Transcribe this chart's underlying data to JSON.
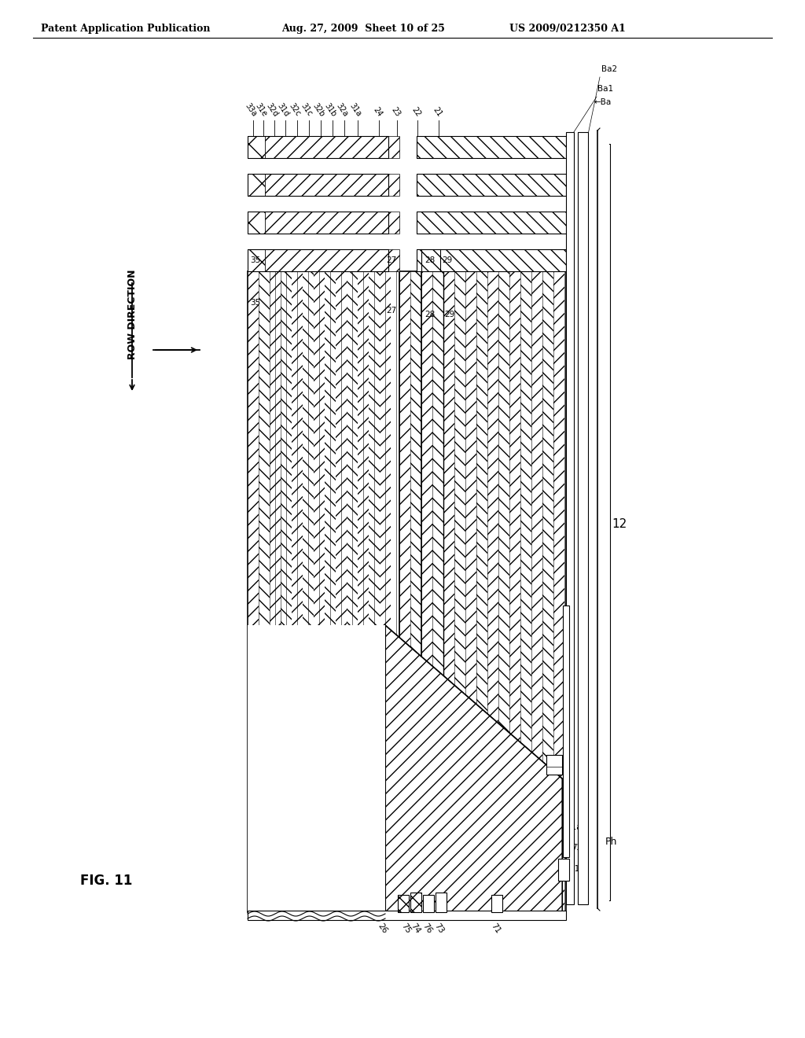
{
  "header_left": "Patent Application Publication",
  "header_center": "Aug. 27, 2009  Sheet 10 of 25",
  "header_right": "US 2009/0212350 A1",
  "fig_label": "FIG. 11",
  "row_direction_label": "ROW DIRECTION"
}
